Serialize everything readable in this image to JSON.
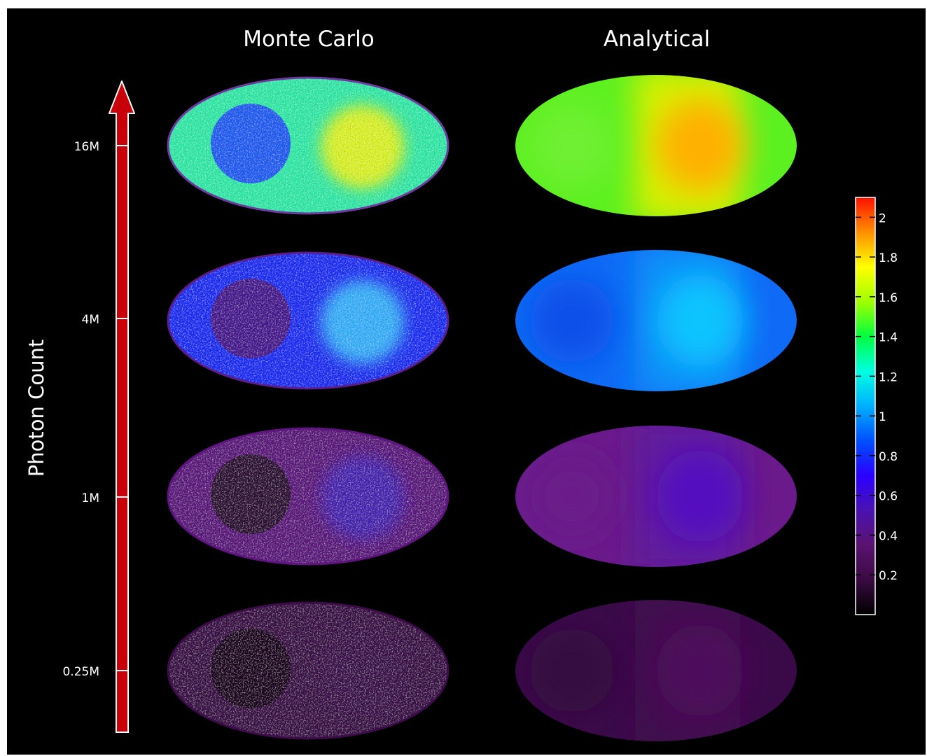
{
  "columns": [
    "Monte Carlo",
    "Analytical"
  ],
  "axis": {
    "label": "Photon Count",
    "ticks": [
      "16M",
      "4M",
      "1M",
      "0.25M"
    ]
  },
  "colorbar": {
    "ticks": [
      "2",
      "1.8",
      "1.6",
      "1.4",
      "1.2",
      "1",
      "0.8",
      "0.6",
      "0.4",
      "0.2"
    ],
    "stops": [
      "#000000",
      "#3a0a42",
      "#5a1370",
      "#4a12b0",
      "#2a00ff",
      "#0050ff",
      "#00b0ff",
      "#00ffe0",
      "#00ff40",
      "#a0ff00",
      "#ffff00",
      "#ff9000",
      "#ff1000"
    ]
  },
  "rows": [
    {
      "count": "16M",
      "mc": {
        "base": "#2fe7a8",
        "left": "#1e5ef0",
        "right": "#d9f020",
        "rim": "#6e3aa0",
        "noise": 0.55
      },
      "an": {
        "base": "#5cf020",
        "left": "#70f030",
        "right": "#ffb000",
        "mid": "#d8f000"
      }
    },
    {
      "count": "4M",
      "mc": {
        "base": "#1a2ef2",
        "left": "#4a1590",
        "right": "#36b0f8",
        "rim": "#5a1d8a",
        "noise": 0.5
      },
      "an": {
        "base": "#0f6af5",
        "left": "#0a50e8",
        "right": "#0ac4ff",
        "mid": "#0a90f8"
      }
    },
    {
      "count": "1M",
      "mc": {
        "base": "#5e147e",
        "left": "#2e0c36",
        "right": "#4a22b0",
        "rim": "#5e147e",
        "noise": 0.35
      },
      "an": {
        "base": "#6a1a8a",
        "left": "#6a1a8a",
        "right": "#5410c0",
        "mid": "#5f1a9e"
      }
    },
    {
      "count": "0.25M",
      "mc": {
        "base": "#3c0c48",
        "left": "#1c0620",
        "right": "#3c0c4e",
        "rim": "#3c0c48",
        "noise": 0.3
      },
      "an": {
        "base": "#3a0a48",
        "left": "#340a40",
        "right": "#4e0c5c",
        "mid": "#420b50"
      }
    }
  ]
}
